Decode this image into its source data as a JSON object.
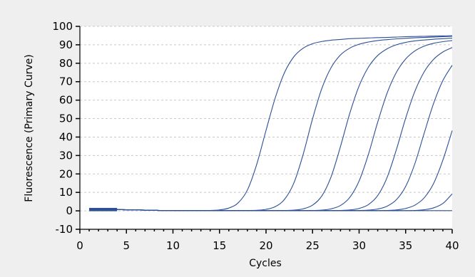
{
  "chart_data": {
    "type": "line",
    "title": "",
    "xlabel": "Cycles",
    "ylabel": "Fluorescence (Primary Curve)",
    "xlim": [
      0,
      40
    ],
    "ylim": [
      -10,
      100
    ],
    "x_ticks": [
      0,
      5,
      10,
      15,
      20,
      25,
      30,
      35,
      40
    ],
    "y_ticks": [
      -10,
      0,
      10,
      20,
      30,
      40,
      50,
      60,
      70,
      80,
      90,
      100
    ],
    "grid": "horizontal dashed",
    "legend": "none",
    "line_color": "#2d4f96",
    "x": [
      1,
      2,
      3,
      4,
      5,
      6,
      7,
      8,
      9,
      10,
      11,
      12,
      13,
      14,
      15,
      16,
      17,
      18,
      19,
      20,
      21,
      22,
      23,
      24,
      25,
      26,
      27,
      28,
      29,
      30,
      31,
      32,
      33,
      34,
      35,
      36,
      37,
      38,
      39,
      40
    ],
    "series": [
      {
        "values": [
          1.2,
          0.9,
          0.8,
          0.7,
          0.6,
          0.5,
          0.4,
          0.3,
          0.2,
          0.2,
          0.1,
          0.1,
          0.1,
          0.2,
          0.5,
          1.5,
          4.3,
          11.3,
          25.2,
          43.6,
          61.4,
          75.1,
          83.6,
          88.2,
          90.6,
          91.8,
          92.5,
          92.9,
          93.3,
          93.5,
          93.7,
          93.9,
          94.0,
          94.2,
          94.4,
          94.5,
          94.6,
          94.7,
          94.8,
          94.9
        ]
      },
      {
        "values": [
          1.2,
          0.9,
          0.8,
          0.7,
          0.6,
          0.5,
          0.4,
          0.3,
          0.2,
          0.2,
          0.1,
          0.1,
          0.1,
          0.1,
          0.1,
          0.1,
          0.1,
          0.2,
          0.3,
          0.8,
          2.3,
          6.3,
          15.2,
          30.8,
          49.9,
          66.4,
          77.7,
          84.5,
          88.2,
          90.3,
          91.5,
          92.3,
          92.8,
          93.2,
          93.5,
          93.8,
          94.0,
          94.2,
          94.4,
          94.6
        ]
      },
      {
        "values": [
          1.2,
          0.9,
          0.8,
          0.7,
          0.6,
          0.5,
          0.4,
          0.3,
          0.2,
          0.2,
          0.1,
          0.1,
          0.1,
          0.1,
          0.1,
          0.1,
          0.1,
          0.1,
          0.1,
          0.1,
          0.1,
          0.2,
          0.4,
          1.1,
          3.1,
          8.1,
          18.6,
          34.9,
          52.9,
          67.7,
          77.9,
          84.2,
          87.8,
          90.0,
          91.3,
          92.1,
          92.6,
          93.0,
          93.3,
          93.6
        ]
      },
      {
        "values": [
          1.2,
          0.9,
          0.8,
          0.7,
          0.6,
          0.5,
          0.4,
          0.3,
          0.2,
          0.2,
          0.1,
          0.1,
          0.1,
          0.1,
          0.1,
          0.1,
          0.1,
          0.1,
          0.1,
          0.1,
          0.1,
          0.1,
          0.1,
          0.1,
          0.2,
          0.4,
          1.1,
          2.9,
          7.3,
          16.2,
          30.6,
          48.1,
          63.7,
          75.0,
          82.3,
          86.7,
          89.3,
          90.8,
          91.7,
          92.3
        ]
      },
      {
        "values": [
          1.2,
          0.9,
          0.8,
          0.7,
          0.6,
          0.5,
          0.4,
          0.3,
          0.2,
          0.2,
          0.1,
          0.1,
          0.1,
          0.1,
          0.1,
          0.1,
          0.1,
          0.1,
          0.1,
          0.1,
          0.1,
          0.1,
          0.1,
          0.1,
          0.1,
          0.1,
          0.1,
          0.2,
          0.5,
          1.3,
          3.4,
          8.3,
          18.0,
          33.1,
          50.2,
          64.9,
          75.4,
          82.1,
          86.1,
          88.5
        ]
      },
      {
        "values": [
          1.2,
          0.9,
          0.8,
          0.7,
          0.6,
          0.5,
          0.4,
          0.3,
          0.2,
          0.2,
          0.1,
          0.1,
          0.1,
          0.1,
          0.1,
          0.1,
          0.1,
          0.1,
          0.1,
          0.1,
          0.1,
          0.1,
          0.1,
          0.1,
          0.1,
          0.1,
          0.1,
          0.1,
          0.1,
          0.2,
          0.4,
          1.0,
          2.5,
          6.0,
          13.2,
          25.7,
          42.2,
          58.2,
          70.6,
          78.9
        ]
      },
      {
        "values": [
          1.2,
          0.9,
          0.8,
          0.7,
          0.6,
          0.5,
          0.4,
          0.3,
          0.2,
          0.2,
          0.1,
          0.1,
          0.1,
          0.1,
          0.1,
          0.1,
          0.1,
          0.1,
          0.1,
          0.1,
          0.1,
          0.1,
          0.1,
          0.1,
          0.1,
          0.1,
          0.1,
          0.1,
          0.1,
          0.1,
          0.1,
          0.1,
          0.2,
          0.5,
          1.3,
          3.1,
          7.1,
          14.8,
          27.5,
          43.5
        ]
      },
      {
        "values": [
          1.2,
          0.9,
          0.8,
          0.7,
          0.6,
          0.5,
          0.4,
          0.3,
          0.2,
          0.2,
          0.1,
          0.1,
          0.1,
          0.1,
          0.1,
          0.1,
          0.1,
          0.1,
          0.1,
          0.1,
          0.1,
          0.1,
          0.1,
          0.1,
          0.1,
          0.1,
          0.1,
          0.1,
          0.1,
          0.1,
          0.1,
          0.1,
          0.1,
          0.1,
          0.1,
          0.2,
          0.6,
          1.6,
          4.0,
          9.2
        ]
      },
      {
        "values": [
          1.2,
          0.9,
          0.8,
          0.7,
          0.6,
          0.5,
          0.4,
          0.3,
          0.2,
          0.2,
          0.1,
          0.1,
          0.1,
          0.1,
          0.1,
          0.1,
          0.1,
          0.1,
          0.1,
          0.1,
          0.1,
          0.1,
          0.1,
          0.1,
          0.1,
          0.1,
          0.1,
          0.1,
          0.1,
          0.1,
          0.1,
          0.1,
          0.1,
          0.1,
          0.1,
          0.1,
          0.1,
          0.1,
          0.1,
          0.1
        ]
      }
    ]
  }
}
